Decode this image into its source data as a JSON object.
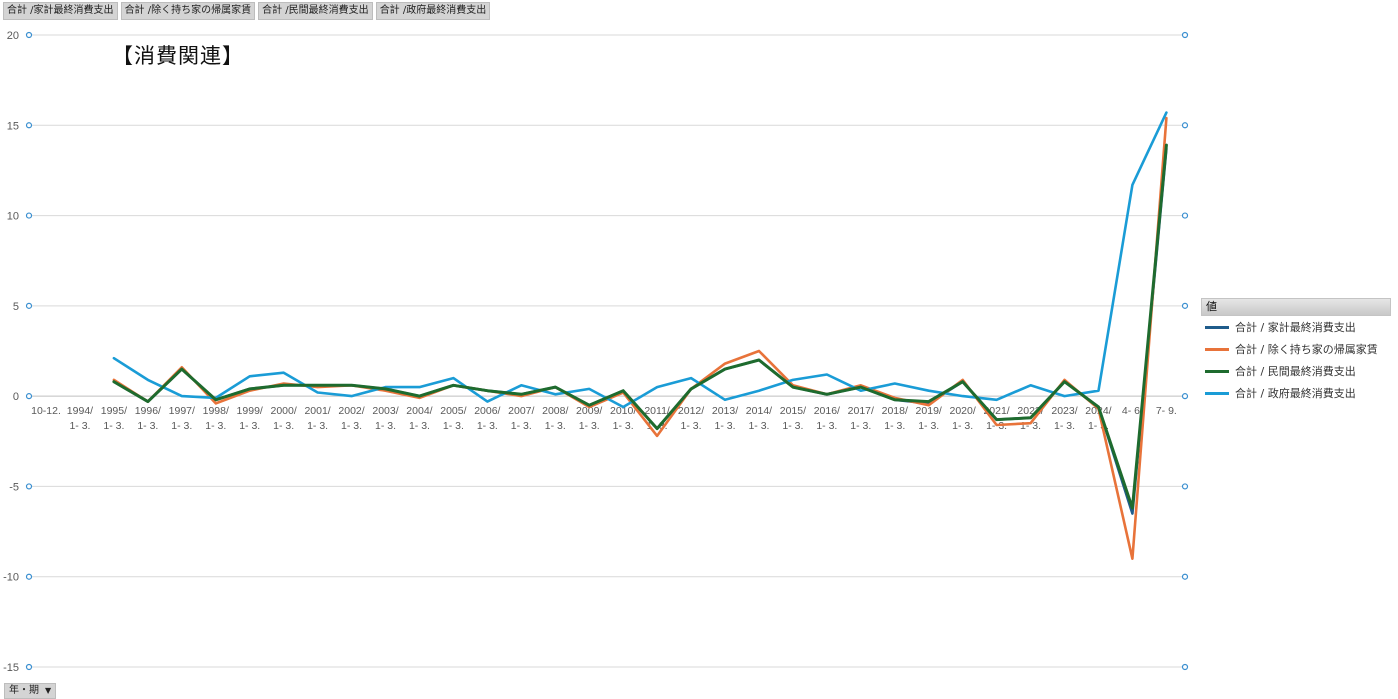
{
  "field_buttons": [
    "合計 /家計最終消費支出",
    "合計 /除く持ち家の帰属家賃",
    "合計 /民間最終消費支出",
    "合計 /政府最終消費支出"
  ],
  "axis_button": {
    "label": "年・期",
    "icon": "dropdown-arrow-icon"
  },
  "legend": {
    "header": "値"
  },
  "chart_data": {
    "type": "line",
    "title": "【消費関連】",
    "grid": true,
    "legend_position": "right",
    "ylim": [
      -15,
      20
    ],
    "yticks": [
      20,
      15,
      10,
      5,
      0,
      -5,
      -10,
      -15
    ],
    "categories": [
      [
        "10-12."
      ],
      [
        "1994/",
        "1- 3."
      ],
      [
        "1995/",
        "1- 3."
      ],
      [
        "1996/",
        "1- 3."
      ],
      [
        "1997/",
        "1- 3."
      ],
      [
        "1998/",
        "1- 3."
      ],
      [
        "1999/",
        "1- 3."
      ],
      [
        "2000/",
        "1- 3."
      ],
      [
        "2001/",
        "1- 3."
      ],
      [
        "2002/",
        "1- 3."
      ],
      [
        "2003/",
        "1- 3."
      ],
      [
        "2004/",
        "1- 3."
      ],
      [
        "2005/",
        "1- 3."
      ],
      [
        "2006/",
        "1- 3."
      ],
      [
        "2007/",
        "1- 3."
      ],
      [
        "2008/",
        "1- 3."
      ],
      [
        "2009/",
        "1- 3."
      ],
      [
        "2010/",
        "1- 3."
      ],
      [
        "2011/",
        "1- 3."
      ],
      [
        "2012/",
        "1- 3."
      ],
      [
        "2013/",
        "1- 3."
      ],
      [
        "2014/",
        "1- 3."
      ],
      [
        "2015/",
        "1- 3."
      ],
      [
        "2016/",
        "1- 3."
      ],
      [
        "2017/",
        "1- 3."
      ],
      [
        "2018/",
        "1- 3."
      ],
      [
        "2019/",
        "1- 3."
      ],
      [
        "2020/",
        "1- 3."
      ],
      [
        "2021/",
        "1- 3."
      ],
      [
        "2022/",
        "1- 3."
      ],
      [
        "2023/",
        "1- 3."
      ],
      [
        "2024/",
        "1- 3."
      ],
      [
        "4- 6."
      ],
      [
        "7- 9."
      ]
    ],
    "series": [
      {
        "name": "合計 / 家計最終消費支出",
        "color": "#1f5c8b",
        "values": [
          null,
          null,
          0.8,
          -0.3,
          1.5,
          -0.2,
          0.4,
          0.6,
          0.6,
          0.6,
          0.4,
          0.0,
          0.6,
          0.3,
          0.1,
          0.5,
          -0.5,
          0.3,
          -1.8,
          0.4,
          1.5,
          2.0,
          0.5,
          0.1,
          0.5,
          -0.2,
          -0.4,
          0.8,
          -1.3,
          -1.2,
          0.8,
          -0.6,
          -6.5,
          13.7
        ]
      },
      {
        "name": "合計 / 除く持ち家の帰属家賃",
        "color": "#e8733a",
        "values": [
          null,
          null,
          0.9,
          -0.3,
          1.6,
          -0.4,
          0.3,
          0.7,
          0.5,
          0.6,
          0.3,
          -0.1,
          0.6,
          0.3,
          0.0,
          0.5,
          -0.6,
          0.2,
          -2.2,
          0.4,
          1.8,
          2.5,
          0.6,
          0.1,
          0.6,
          -0.1,
          -0.5,
          0.9,
          -1.6,
          -1.5,
          0.9,
          -0.7,
          -9.0,
          15.4
        ]
      },
      {
        "name": "合計 / 民間最終消費支出",
        "color": "#1e6b2e",
        "values": [
          null,
          null,
          0.8,
          -0.3,
          1.5,
          -0.2,
          0.4,
          0.6,
          0.6,
          0.6,
          0.4,
          0.0,
          0.6,
          0.3,
          0.1,
          0.5,
          -0.5,
          0.3,
          -1.8,
          0.4,
          1.5,
          2.0,
          0.5,
          0.1,
          0.5,
          -0.2,
          -0.3,
          0.8,
          -1.3,
          -1.2,
          0.8,
          -0.6,
          -6.2,
          13.9
        ]
      },
      {
        "name": "合計 / 政府最終消費支出",
        "color": "#1a9cd6",
        "values": [
          null,
          null,
          2.1,
          0.9,
          0.0,
          -0.1,
          1.1,
          1.3,
          0.2,
          0.0,
          0.5,
          0.5,
          1.0,
          -0.3,
          0.6,
          0.1,
          0.4,
          -0.6,
          0.5,
          1.0,
          -0.2,
          0.3,
          0.9,
          1.2,
          0.3,
          0.7,
          0.3,
          0.0,
          -0.2,
          0.6,
          0.0,
          0.3,
          11.7,
          15.7
        ]
      }
    ]
  }
}
